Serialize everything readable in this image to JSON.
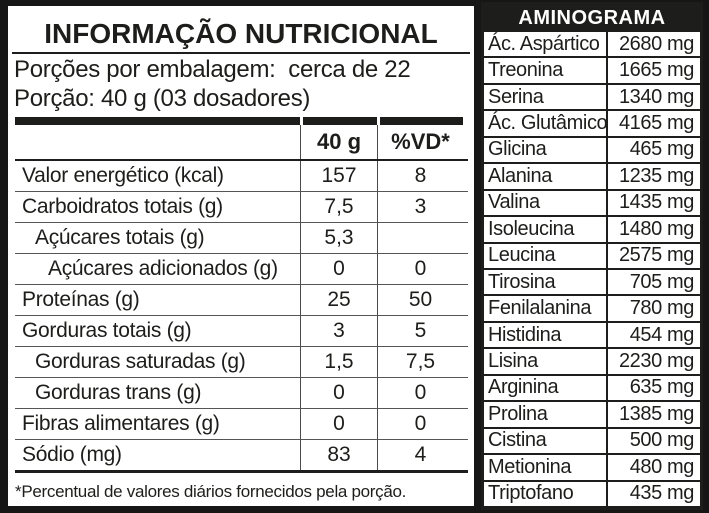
{
  "colors": {
    "ink": "#1d1d1b",
    "paper": "#ffffff",
    "grid_line": "#555555",
    "background": "#161616"
  },
  "nutrition": {
    "title": "INFORMAÇÃO NUTRICIONAL",
    "servings_line": "Porções por embalagem:  cerca de 22",
    "portion_line": "Porção: 40 g (03 dosadores)",
    "table": {
      "amount_header": "40 g",
      "vd_header": "%VD*",
      "rows": [
        {
          "label": "Valor energético (kcal)",
          "indent": 0,
          "amount": "157",
          "vd": "8"
        },
        {
          "label": "Carboidratos totais (g)",
          "indent": 0,
          "amount": "7,5",
          "vd": "3"
        },
        {
          "label": "Açúcares totais (g)",
          "indent": 1,
          "amount": "5,3",
          "vd": ""
        },
        {
          "label": "Açúcares adicionados (g)",
          "indent": 2,
          "amount": "0",
          "vd": "0"
        },
        {
          "label": "Proteínas (g)",
          "indent": 0,
          "amount": "25",
          "vd": "50"
        },
        {
          "label": "Gorduras totais (g)",
          "indent": 0,
          "amount": "3",
          "vd": "5"
        },
        {
          "label": "Gorduras saturadas (g)",
          "indent": 1,
          "amount": "1,5",
          "vd": "7,5"
        },
        {
          "label": "Gorduras trans (g)",
          "indent": 1,
          "amount": "0",
          "vd": "0"
        },
        {
          "label": "Fibras alimentares (g)",
          "indent": 0,
          "amount": "0",
          "vd": "0"
        },
        {
          "label": "Sódio (mg)",
          "indent": 0,
          "amount": "83",
          "vd": "4"
        }
      ]
    },
    "footnote": "*Percentual de valores diários fornecidos pela porção."
  },
  "aminogram": {
    "title": "AMINOGRAMA",
    "rows": [
      {
        "name": "Ác. Aspártico",
        "value": "2680 mg"
      },
      {
        "name": "Treonina",
        "value": "1665 mg"
      },
      {
        "name": "Serina",
        "value": "1340 mg"
      },
      {
        "name": "Ác. Glutâmico",
        "value": "4165 mg"
      },
      {
        "name": "Glicina",
        "value": "465 mg"
      },
      {
        "name": "Alanina",
        "value": "1235 mg"
      },
      {
        "name": "Valina",
        "value": "1435 mg"
      },
      {
        "name": "Isoleucina",
        "value": "1480 mg"
      },
      {
        "name": "Leucina",
        "value": "2575 mg"
      },
      {
        "name": "Tirosina",
        "value": "705 mg"
      },
      {
        "name": "Fenilalanina",
        "value": "780 mg"
      },
      {
        "name": "Histidina",
        "value": "454 mg"
      },
      {
        "name": "Lisina",
        "value": "2230 mg"
      },
      {
        "name": "Arginina",
        "value": "635 mg"
      },
      {
        "name": "Prolina",
        "value": "1385 mg"
      },
      {
        "name": "Cistina",
        "value": "500 mg"
      },
      {
        "name": "Metionina",
        "value": "480 mg"
      },
      {
        "name": "Triptofano",
        "value": "435 mg"
      }
    ]
  }
}
